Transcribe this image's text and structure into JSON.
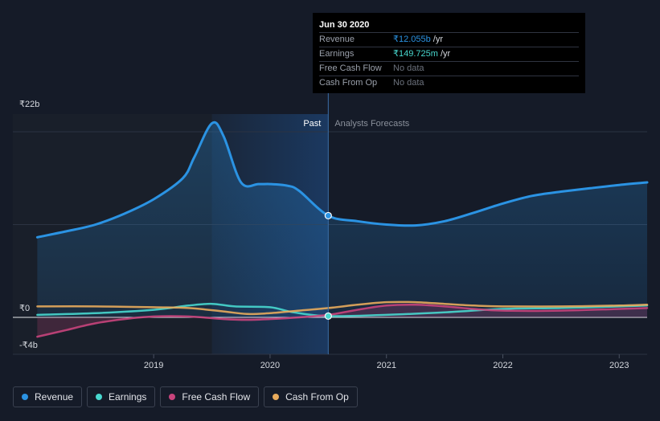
{
  "chart_data": {
    "type": "area",
    "currency_symbol": "₹",
    "y_tick_labels": [
      "₹22b",
      "₹0",
      "-₹4b"
    ],
    "ylim": [
      -4,
      22
    ],
    "x_ticks": [
      {
        "label": "2019",
        "x": 2019.0
      },
      {
        "label": "2020",
        "x": 2020.0
      },
      {
        "label": "2021",
        "x": 2021.0
      },
      {
        "label": "2022",
        "x": 2022.0
      },
      {
        "label": "2023",
        "x": 2023.0
      }
    ],
    "xlim": [
      2017.79,
      2023.24
    ],
    "past_label": "Past",
    "forecast_label": "Analysts Forecasts",
    "divider_x": 2020.5,
    "highlight_start_x": 2019.5,
    "series": [
      {
        "name": "Revenue",
        "color": "#2b93e3",
        "fill": true,
        "points": [
          [
            2018.0,
            9.5
          ],
          [
            2018.25,
            10.2
          ],
          [
            2018.5,
            11.0
          ],
          [
            2018.75,
            12.3
          ],
          [
            2019.0,
            14.0
          ],
          [
            2019.25,
            16.5
          ],
          [
            2019.35,
            19.0
          ],
          [
            2019.5,
            23.0
          ],
          [
            2019.6,
            21.5
          ],
          [
            2019.75,
            16.0
          ],
          [
            2019.9,
            15.8
          ],
          [
            2020.0,
            15.8
          ],
          [
            2020.15,
            15.6
          ],
          [
            2020.25,
            15.0
          ],
          [
            2020.5,
            12.055
          ],
          [
            2020.75,
            11.4
          ],
          [
            2021.0,
            11.0
          ],
          [
            2021.25,
            10.9
          ],
          [
            2021.5,
            11.4
          ],
          [
            2021.75,
            12.4
          ],
          [
            2022.0,
            13.5
          ],
          [
            2022.25,
            14.4
          ],
          [
            2022.5,
            14.9
          ],
          [
            2022.75,
            15.3
          ],
          [
            2023.0,
            15.7
          ],
          [
            2023.24,
            16.0
          ]
        ]
      },
      {
        "name": "Earnings",
        "color": "#48d8cf",
        "fill": false,
        "points": [
          [
            2018.0,
            0.3
          ],
          [
            2018.5,
            0.5
          ],
          [
            2019.0,
            0.9
          ],
          [
            2019.3,
            1.4
          ],
          [
            2019.5,
            1.6
          ],
          [
            2019.7,
            1.3
          ],
          [
            2020.0,
            1.2
          ],
          [
            2020.2,
            0.6
          ],
          [
            2020.5,
            0.15
          ],
          [
            2021.0,
            0.3
          ],
          [
            2021.5,
            0.6
          ],
          [
            2022.0,
            1.0
          ],
          [
            2022.5,
            1.1
          ],
          [
            2023.0,
            1.3
          ],
          [
            2023.24,
            1.4
          ]
        ]
      },
      {
        "name": "Free Cash Flow",
        "color": "#c8447c",
        "fill": true,
        "points": [
          [
            2018.0,
            -2.3
          ],
          [
            2018.25,
            -1.5
          ],
          [
            2018.5,
            -0.7
          ],
          [
            2018.75,
            -0.2
          ],
          [
            2019.0,
            0.1
          ],
          [
            2019.3,
            0.1
          ],
          [
            2019.6,
            -0.2
          ],
          [
            2019.8,
            -0.3
          ],
          [
            2020.0,
            -0.2
          ],
          [
            2020.25,
            0.0
          ],
          [
            2020.5,
            0.3
          ],
          [
            2020.75,
            0.9
          ],
          [
            2021.0,
            1.4
          ],
          [
            2021.25,
            1.5
          ],
          [
            2021.5,
            1.3
          ],
          [
            2021.75,
            1.0
          ],
          [
            2022.0,
            0.8
          ],
          [
            2022.5,
            0.8
          ],
          [
            2023.0,
            1.0
          ],
          [
            2023.24,
            1.1
          ]
        ]
      },
      {
        "name": "Cash From Op",
        "color": "#e8ab5c",
        "fill": false,
        "points": [
          [
            2018.0,
            1.3
          ],
          [
            2018.5,
            1.3
          ],
          [
            2019.0,
            1.2
          ],
          [
            2019.3,
            1.1
          ],
          [
            2019.6,
            0.7
          ],
          [
            2019.8,
            0.4
          ],
          [
            2020.0,
            0.5
          ],
          [
            2020.25,
            0.8
          ],
          [
            2020.5,
            1.1
          ],
          [
            2020.75,
            1.5
          ],
          [
            2021.0,
            1.8
          ],
          [
            2021.25,
            1.8
          ],
          [
            2021.5,
            1.6
          ],
          [
            2021.75,
            1.4
          ],
          [
            2022.0,
            1.3
          ],
          [
            2022.5,
            1.3
          ],
          [
            2023.0,
            1.4
          ],
          [
            2023.24,
            1.5
          ]
        ]
      }
    ]
  },
  "tooltip": {
    "date": "Jun 30 2020",
    "rows": [
      {
        "label": "Revenue",
        "value": "₹12.055b",
        "unit": "/yr",
        "color": "#2b93e3"
      },
      {
        "label": "Earnings",
        "value": "₹149.725m",
        "unit": "/yr",
        "color": "#48d8cf"
      },
      {
        "label": "Free Cash Flow",
        "value": "No data",
        "unit": "",
        "color": "#6c727d"
      },
      {
        "label": "Cash From Op",
        "value": "No data",
        "unit": "",
        "color": "#6c727d"
      }
    ]
  },
  "legend": {
    "items": [
      {
        "label": "Revenue",
        "color": "#2b93e3"
      },
      {
        "label": "Earnings",
        "color": "#48d8cf"
      },
      {
        "label": "Free Cash Flow",
        "color": "#c8447c"
      },
      {
        "label": "Cash From Op",
        "color": "#e8ab5c"
      }
    ]
  }
}
